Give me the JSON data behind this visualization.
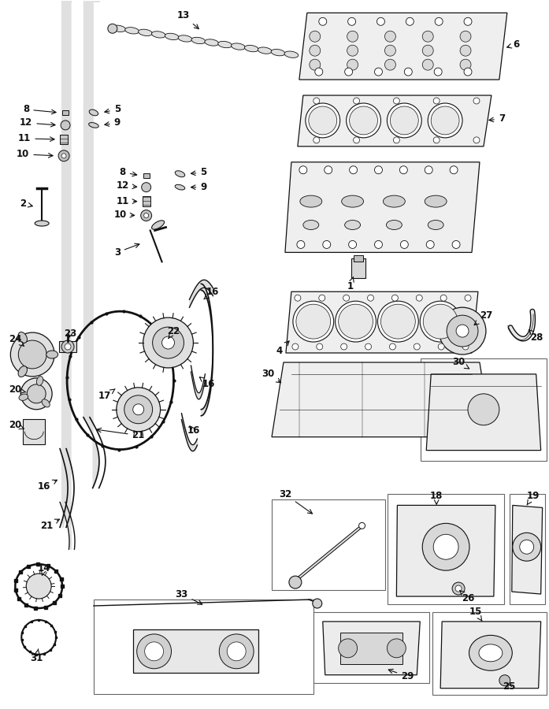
{
  "bg_color": "#ffffff",
  "fig_width": 6.97,
  "fig_height": 9.0,
  "dpi": 100,
  "gray": "#1a1a1a",
  "light": "#f0f0f0",
  "part_color": "#e8e8e8",
  "line_color": "#111111",
  "label_fontsize": 8.5,
  "label_fontweight": "bold",
  "label_color": "#111111",
  "arrow_lw": 0.8,
  "part_lw": 0.9
}
